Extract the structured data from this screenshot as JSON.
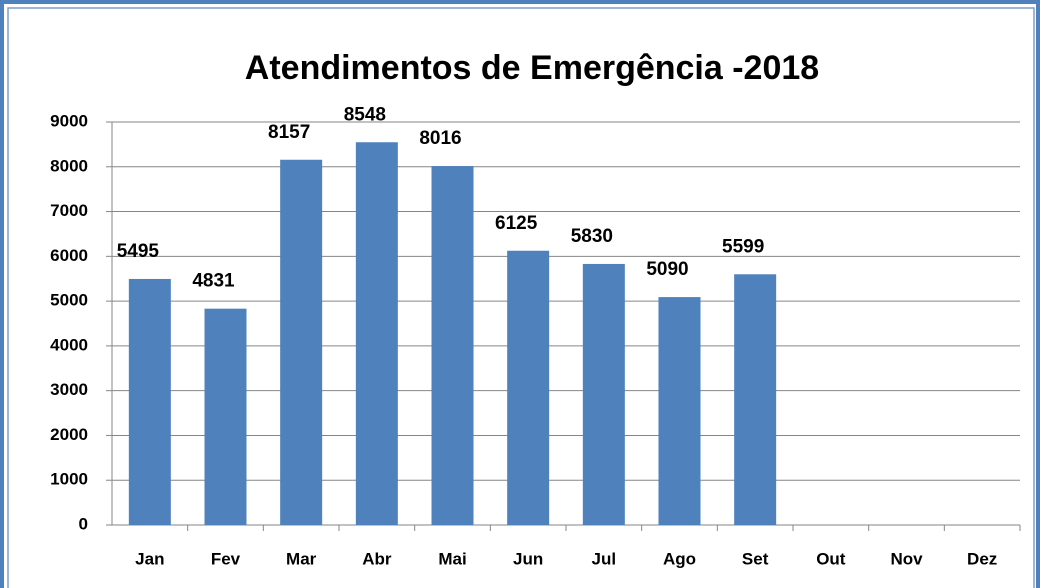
{
  "chart_data": {
    "type": "bar",
    "title": "Atendimentos de Emergência -2018",
    "categories": [
      "Jan",
      "Fev",
      "Mar",
      "Abr",
      "Mai",
      "Jun",
      "Jul",
      "Ago",
      "Set",
      "Out",
      "Nov",
      "Dez"
    ],
    "values": [
      5495,
      4831,
      8157,
      8548,
      8016,
      6125,
      5830,
      5090,
      5599,
      null,
      null,
      null
    ],
    "color": "#4f81bd",
    "ylim": [
      0,
      9000
    ],
    "yticks": [
      0,
      1000,
      2000,
      3000,
      4000,
      5000,
      6000,
      7000,
      8000,
      9000
    ],
    "grid": true
  }
}
